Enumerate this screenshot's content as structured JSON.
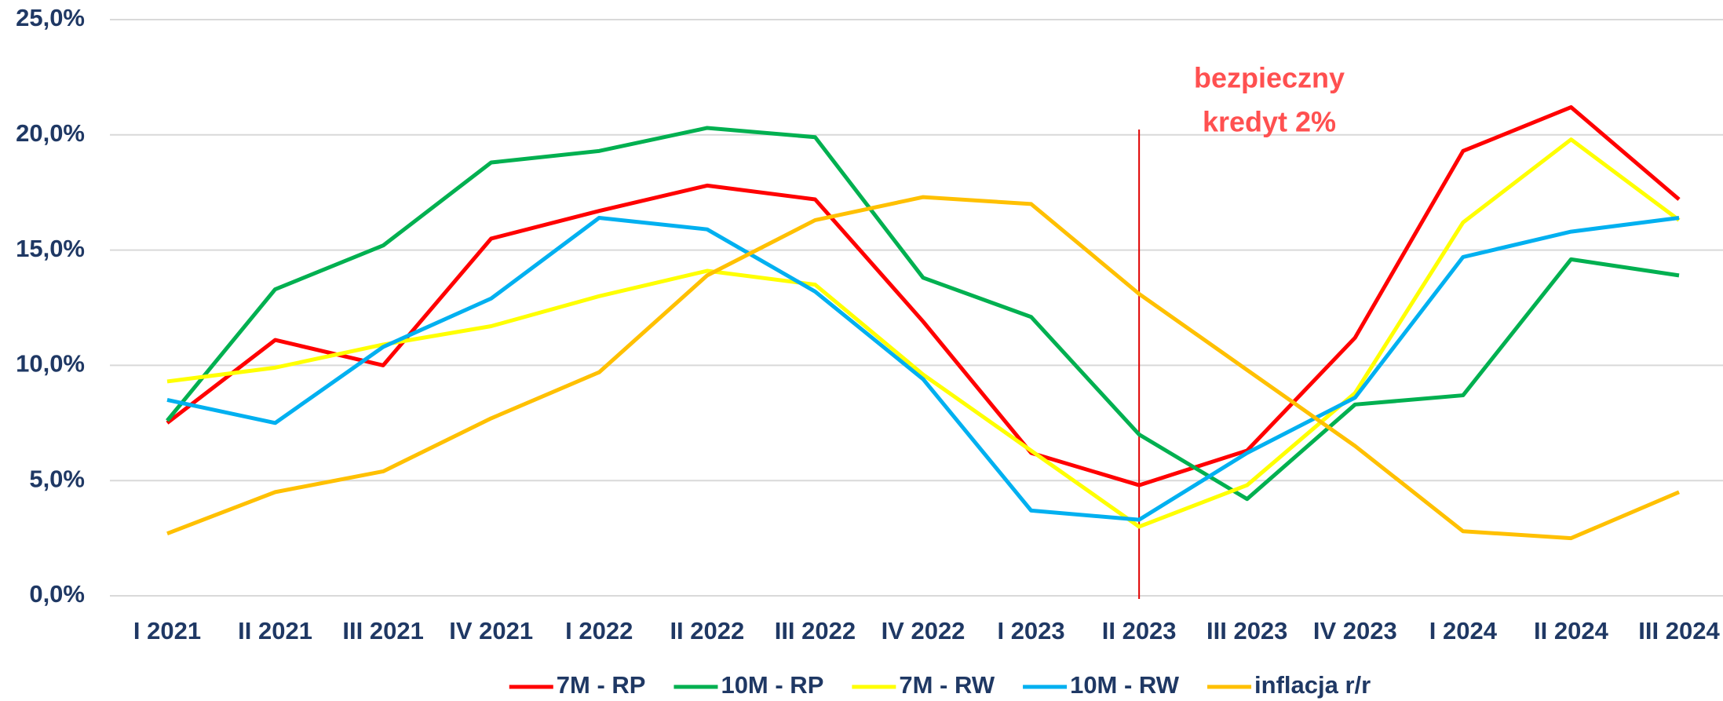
{
  "chart_data": {
    "type": "line",
    "categories": [
      "I 2021",
      "II 2021",
      "III 2021",
      "IV 2021",
      "I 2022",
      "II 2022",
      "III 2022",
      "IV 2022",
      "I 2023",
      "II 2023",
      "III 2023",
      "IV 2023",
      "I 2024",
      "II 2024",
      "III 2024"
    ],
    "series": [
      {
        "name": "7M - RP",
        "color": "#ff0000",
        "values": [
          7.5,
          11.1,
          10.0,
          15.5,
          16.7,
          17.8,
          17.2,
          11.9,
          6.2,
          4.8,
          6.3,
          11.2,
          19.3,
          21.2,
          17.2
        ]
      },
      {
        "name": "10M - RP",
        "color": "#00b050",
        "values": [
          7.6,
          13.3,
          15.2,
          18.8,
          19.3,
          20.3,
          19.9,
          13.8,
          12.1,
          7.0,
          4.2,
          8.3,
          8.7,
          14.6,
          13.9
        ]
      },
      {
        "name": "7M - RW",
        "color": "#ffff00",
        "values": [
          9.3,
          9.9,
          10.9,
          11.7,
          13.0,
          14.1,
          13.5,
          9.6,
          6.3,
          3.0,
          4.8,
          8.8,
          16.2,
          19.8,
          16.3
        ]
      },
      {
        "name": "10M - RW",
        "color": "#00b0f0",
        "values": [
          8.5,
          7.5,
          10.8,
          12.9,
          16.4,
          15.9,
          13.2,
          9.4,
          3.7,
          3.3,
          6.2,
          8.6,
          14.7,
          15.8,
          16.4
        ]
      },
      {
        "name": "inflacja r/r",
        "color": "#ffc000",
        "values": [
          2.7,
          4.5,
          5.4,
          7.7,
          9.7,
          13.9,
          16.3,
          17.3,
          17.0,
          13.1,
          9.8,
          6.5,
          2.8,
          2.5,
          4.5
        ]
      }
    ],
    "ylim": [
      0,
      25
    ],
    "yticks": [
      {
        "value": 0,
        "label": "0,0%"
      },
      {
        "value": 5,
        "label": "5,0%"
      },
      {
        "value": 10,
        "label": "10,0%"
      },
      {
        "value": 15,
        "label": "15,0%"
      },
      {
        "value": 20,
        "label": "20,0%"
      },
      {
        "value": 25,
        "label": "25,0%"
      }
    ],
    "grid": true,
    "legend": "bottom",
    "annotation": [
      "bezpieczny",
      "kredyt 2%"
    ]
  }
}
